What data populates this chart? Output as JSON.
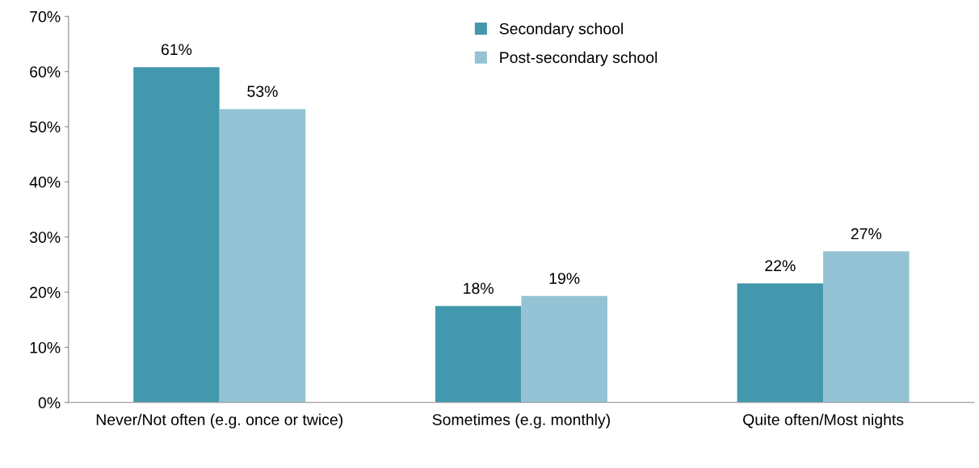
{
  "chart_data": {
    "type": "bar",
    "categories": [
      "Never/Not often (e.g. once or twice)",
      "Sometimes (e.g. monthly)",
      "Quite often/Most nights"
    ],
    "series": [
      {
        "name": "Secondary school",
        "color": "#4398ae",
        "values": [
          60.8,
          17.5,
          21.6
        ],
        "value_labels": [
          "61%",
          "18%",
          "22%"
        ]
      },
      {
        "name": "Post-secondary school",
        "color": "#93c3d4",
        "values": [
          53.2,
          19.3,
          27.4
        ],
        "value_labels": [
          "53%",
          "19%",
          "27%"
        ]
      }
    ],
    "ylim": [
      0,
      70
    ],
    "yticks": [
      {
        "value": 0,
        "label": "0%"
      },
      {
        "value": 10,
        "label": "10%"
      },
      {
        "value": 20,
        "label": "20%"
      },
      {
        "value": 30,
        "label": "30%"
      },
      {
        "value": 40,
        "label": "40%"
      },
      {
        "value": 50,
        "label": "50%"
      },
      {
        "value": 60,
        "label": "60%"
      },
      {
        "value": 70,
        "label": "70%"
      }
    ],
    "grid": false,
    "legend": "top"
  }
}
